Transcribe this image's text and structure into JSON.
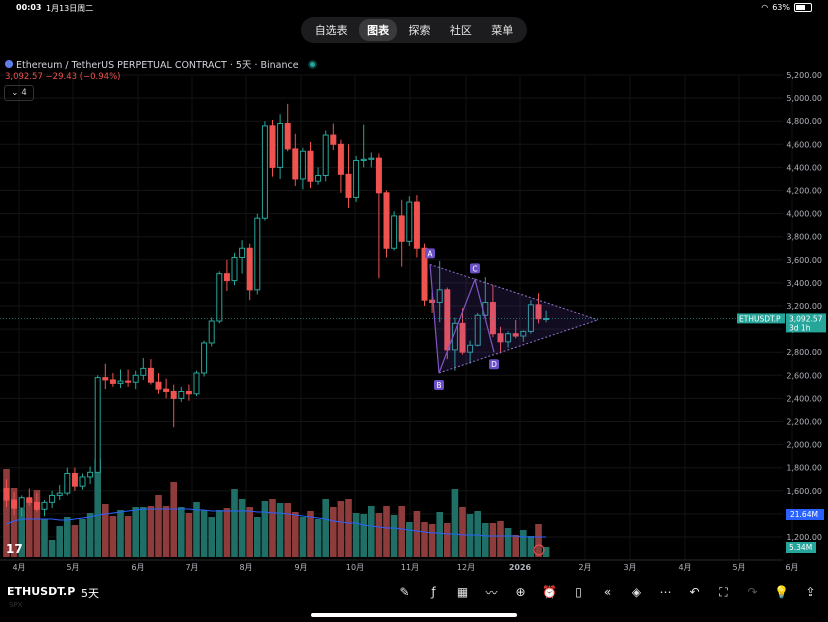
{
  "status_bar": {
    "time": "00:03",
    "date": "1月13日周二",
    "battery": "63%"
  },
  "tabs": [
    {
      "label": "自选表",
      "active": false
    },
    {
      "label": "图表",
      "active": true
    },
    {
      "label": "探索",
      "active": false
    },
    {
      "label": "社区",
      "active": false
    },
    {
      "label": "菜单",
      "active": false
    }
  ],
  "legend": {
    "title": "Ethereum / TetherUS PERPETUAL CONTRACT · 5天 · Binance",
    "ohlc": "3,092.57  −29.43 (−0.94%)",
    "indicator_count": "4"
  },
  "bottom_bar": {
    "symbol": "ETHUSDT.P",
    "timeframe": "5天",
    "sub": "SPX"
  },
  "chart_data": {
    "type": "candlestick",
    "title": "Ethereum / TetherUS PERPETUAL CONTRACT · 5天 · Binance",
    "ylim": [
      1200,
      5200
    ],
    "y_ticks": [
      "5,200.00",
      "5,000.00",
      "4,800.00",
      "4,600.00",
      "4,400.00",
      "4,200.00",
      "4,000.00",
      "3,800.00",
      "3,600.00",
      "3,400.00",
      "3,200.00",
      "3,000.00",
      "2,800.00",
      "2,600.00",
      "2,400.00",
      "2,200.00",
      "2,000.00",
      "1,800.00",
      "1,600.00",
      "1,400.00",
      "1,200.00"
    ],
    "x_labels": [
      "4月",
      "5月",
      "6月",
      "7月",
      "8月",
      "9月",
      "10月",
      "11月",
      "12月",
      "2026",
      "2月",
      "3月",
      "4月",
      "5月",
      "6月"
    ],
    "last_price": {
      "symbol": "ETHUSDT.P",
      "price": "3,092.57",
      "countdown": "3d 1h"
    },
    "volume_labels": {
      "volume": "21.64M",
      "ma": "5.34M"
    },
    "pattern_points": {
      "A": "A",
      "B": "B",
      "C": "C",
      "D": "D"
    },
    "candles": [
      [
        1620,
        1700,
        1460,
        1520
      ],
      [
        1520,
        1590,
        1390,
        1450
      ],
      [
        1450,
        1560,
        1380,
        1540
      ],
      [
        1540,
        1620,
        1470,
        1500
      ],
      [
        1500,
        1580,
        1420,
        1440
      ],
      [
        1440,
        1520,
        1380,
        1500
      ],
      [
        1500,
        1600,
        1450,
        1560
      ],
      [
        1560,
        1650,
        1520,
        1580
      ],
      [
        1580,
        1800,
        1560,
        1750
      ],
      [
        1750,
        1800,
        1600,
        1640
      ],
      [
        1640,
        1750,
        1610,
        1720
      ],
      [
        1720,
        1810,
        1660,
        1760
      ],
      [
        1760,
        2600,
        1760,
        2580
      ],
      [
        2580,
        2700,
        2480,
        2560
      ],
      [
        2560,
        2620,
        2500,
        2530
      ],
      [
        2530,
        2650,
        2490,
        2550
      ],
      [
        2550,
        2650,
        2500,
        2540
      ],
      [
        2540,
        2640,
        2480,
        2600
      ],
      [
        2600,
        2750,
        2560,
        2660
      ],
      [
        2660,
        2740,
        2520,
        2540
      ],
      [
        2540,
        2620,
        2440,
        2480
      ],
      [
        2480,
        2570,
        2400,
        2460
      ],
      [
        2460,
        2520,
        2150,
        2400
      ],
      [
        2400,
        2500,
        2370,
        2460
      ],
      [
        2460,
        2520,
        2380,
        2440
      ],
      [
        2440,
        2640,
        2420,
        2620
      ],
      [
        2620,
        2900,
        2590,
        2880
      ],
      [
        2880,
        3100,
        2850,
        3070
      ],
      [
        3070,
        3500,
        3050,
        3480
      ],
      [
        3480,
        3600,
        3330,
        3420
      ],
      [
        3420,
        3660,
        3380,
        3620
      ],
      [
        3620,
        3770,
        3480,
        3700
      ],
      [
        3700,
        3740,
        3250,
        3340
      ],
      [
        3340,
        4000,
        3300,
        3960
      ],
      [
        3960,
        4800,
        3940,
        4760
      ],
      [
        4760,
        4810,
        4320,
        4400
      ],
      [
        4400,
        4860,
        4300,
        4780
      ],
      [
        4780,
        4950,
        4540,
        4560
      ],
      [
        4560,
        4690,
        4240,
        4300
      ],
      [
        4300,
        4570,
        4210,
        4540
      ],
      [
        4540,
        4620,
        4220,
        4280
      ],
      [
        4280,
        4400,
        4250,
        4330
      ],
      [
        4330,
        4720,
        4280,
        4680
      ],
      [
        4680,
        4780,
        4550,
        4600
      ],
      [
        4600,
        4640,
        4180,
        4340
      ],
      [
        4340,
        4600,
        4050,
        4140
      ],
      [
        4140,
        4500,
        4100,
        4460
      ],
      [
        4460,
        4770,
        4400,
        4470
      ],
      [
        4470,
        4530,
        4400,
        4480
      ],
      [
        4480,
        4520,
        3440,
        4180
      ],
      [
        4180,
        4200,
        3620,
        3700
      ],
      [
        3700,
        4020,
        3680,
        3980
      ],
      [
        3980,
        4120,
        3540,
        3760
      ],
      [
        3760,
        4150,
        3720,
        4100
      ],
      [
        4100,
        4160,
        3620,
        3700
      ],
      [
        3700,
        3740,
        3200,
        3250
      ],
      [
        3250,
        3320,
        3140,
        3230
      ],
      [
        3230,
        3590,
        3060,
        3340
      ],
      [
        3340,
        3360,
        2740,
        2820
      ],
      [
        2820,
        3100,
        2640,
        3050
      ],
      [
        3050,
        3180,
        2780,
        2800
      ],
      [
        2800,
        2900,
        2700,
        2860
      ],
      [
        2860,
        3140,
        2850,
        3120
      ],
      [
        3120,
        3450,
        3100,
        3230
      ],
      [
        3230,
        3380,
        2930,
        2960
      ],
      [
        2960,
        3020,
        2790,
        2890
      ],
      [
        2890,
        2980,
        2840,
        2960
      ],
      [
        2960,
        3080,
        2920,
        2940
      ],
      [
        2940,
        2990,
        2890,
        2980
      ],
      [
        2980,
        3250,
        2960,
        3210
      ],
      [
        3210,
        3310,
        3050,
        3090
      ],
      [
        3090,
        3160,
        3060,
        3092
      ]
    ],
    "volumes": [
      0.88,
      0.69,
      0.48,
      0.58,
      0.67,
      0.38,
      0.17,
      0.31,
      0.4,
      0.32,
      0.38,
      0.44,
      0.98,
      0.53,
      0.41,
      0.47,
      0.41,
      0.5,
      0.5,
      0.51,
      0.62,
      0.51,
      0.75,
      0.5,
      0.44,
      0.55,
      0.47,
      0.4,
      0.47,
      0.49,
      0.68,
      0.58,
      0.5,
      0.4,
      0.56,
      0.58,
      0.54,
      0.54,
      0.45,
      0.4,
      0.46,
      0.38,
      0.58,
      0.5,
      0.56,
      0.58,
      0.44,
      0.43,
      0.51,
      0.44,
      0.51,
      0.42,
      0.51,
      0.35,
      0.46,
      0.35,
      0.33,
      0.45,
      0.34,
      0.68,
      0.5,
      0.43,
      0.46,
      0.34,
      0.34,
      0.36,
      0.29,
      0.22,
      0.27,
      0.21,
      0.33,
      0.1
    ],
    "volume_ma": [
      0.33,
      0.36,
      0.38,
      0.38,
      0.38,
      0.38,
      0.38,
      0.37,
      0.37,
      0.38,
      0.39,
      0.4,
      0.42,
      0.43,
      0.44,
      0.45,
      0.46,
      0.47,
      0.48,
      0.48,
      0.48,
      0.48,
      0.48,
      0.48,
      0.48,
      0.47,
      0.47,
      0.46,
      0.46,
      0.46,
      0.46,
      0.46,
      0.46,
      0.45,
      0.45,
      0.44,
      0.44,
      0.43,
      0.42,
      0.41,
      0.4,
      0.39,
      0.38,
      0.36,
      0.35,
      0.34,
      0.34,
      0.32,
      0.31,
      0.3,
      0.29,
      0.29,
      0.28,
      0.27,
      0.26,
      0.25,
      0.24,
      0.24,
      0.23,
      0.23,
      0.22,
      0.22,
      0.22,
      0.21,
      0.21,
      0.21,
      0.21,
      0.21,
      0.2,
      0.2,
      0.2,
      0.2
    ]
  }
}
